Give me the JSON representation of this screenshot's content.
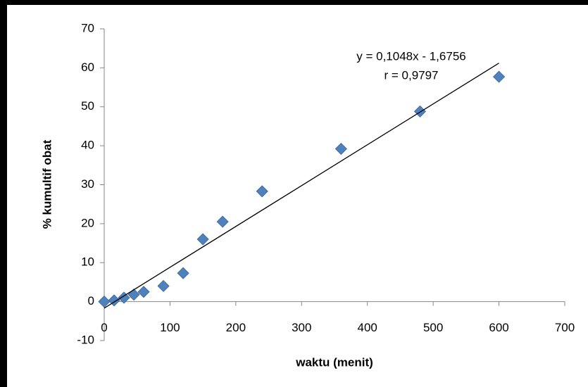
{
  "chart_data": {
    "type": "scatter",
    "x": [
      0,
      15,
      30,
      45,
      60,
      90,
      120,
      150,
      180,
      240,
      360,
      480,
      600
    ],
    "values": [
      0,
      0.3,
      1.0,
      1.8,
      2.5,
      4.0,
      7.3,
      16.0,
      20.5,
      28.3,
      39.2,
      48.8,
      57.7
    ],
    "color": "#4f81bd",
    "xlim": [
      0,
      700
    ],
    "xticks": [
      0,
      100,
      200,
      300,
      400,
      500,
      600,
      700
    ],
    "ylim": [
      -10,
      70
    ],
    "yticks": [
      -10,
      0,
      10,
      20,
      30,
      40,
      50,
      60,
      70
    ],
    "xlabel": "waktu (menit)",
    "ylabel": "% kumultif obat",
    "trendline": {
      "slope": 0.1048,
      "intercept": -1.6756,
      "color": "#000000"
    },
    "annotations": [
      "y = 0,1048x - 1,6756",
      "r = 0,9797"
    ]
  }
}
